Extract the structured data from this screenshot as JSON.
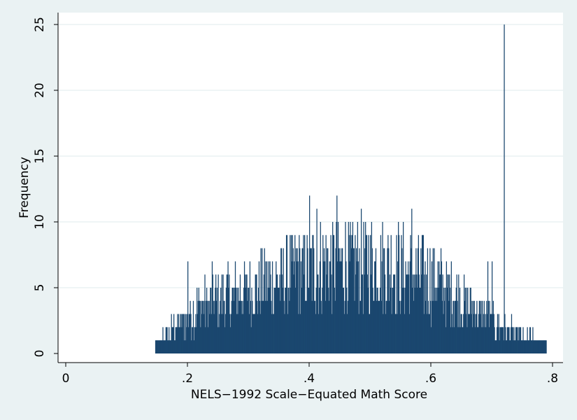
{
  "chart_data": {
    "type": "bar",
    "title": "",
    "xlabel": "NELS−1992 Scale−Equated Math Score",
    "ylabel": "Frequency",
    "xlim": [
      0,
      0.8
    ],
    "ylim": [
      0,
      25
    ],
    "x_ticks": [
      "0",
      ".2",
      ".4",
      ".6",
      ".8"
    ],
    "x_tick_values": [
      0,
      0.2,
      0.4,
      0.6,
      0.8
    ],
    "y_ticks": [
      "0",
      "5",
      "10",
      "15",
      "20",
      "25"
    ],
    "y_tick_values": [
      0,
      5,
      10,
      15,
      20,
      25
    ],
    "grid": true,
    "bar_color": "#1a476f",
    "bins": {
      "start": 0.147,
      "end": 0.79,
      "count": 643
    },
    "envelope": [
      [
        0.147,
        1
      ],
      [
        0.16,
        1.5
      ],
      [
        0.18,
        2.5
      ],
      [
        0.2,
        3.5
      ],
      [
        0.22,
        4.5
      ],
      [
        0.25,
        5
      ],
      [
        0.3,
        6
      ],
      [
        0.35,
        7
      ],
      [
        0.4,
        8
      ],
      [
        0.45,
        8.5
      ],
      [
        0.5,
        8.5
      ],
      [
        0.55,
        8
      ],
      [
        0.6,
        7
      ],
      [
        0.65,
        5
      ],
      [
        0.7,
        3
      ],
      [
        0.75,
        1.5
      ],
      [
        0.79,
        1
      ]
    ],
    "peaks": [
      {
        "x": 0.4,
        "y": 12
      },
      {
        "x": 0.412,
        "y": 11
      },
      {
        "x": 0.445,
        "y": 12
      },
      {
        "x": 0.568,
        "y": 11
      },
      {
        "x": 0.72,
        "y": 25
      },
      {
        "x": 0.693,
        "y": 7
      },
      {
        "x": 0.7,
        "y": 7
      },
      {
        "x": 0.2,
        "y": 7
      },
      {
        "x": 0.24,
        "y": 7
      },
      {
        "x": 0.266,
        "y": 7
      },
      {
        "x": 0.266,
        "y": 7
      },
      {
        "x": 0.32,
        "y": 8
      },
      {
        "x": 0.38,
        "y": 8
      }
    ]
  }
}
